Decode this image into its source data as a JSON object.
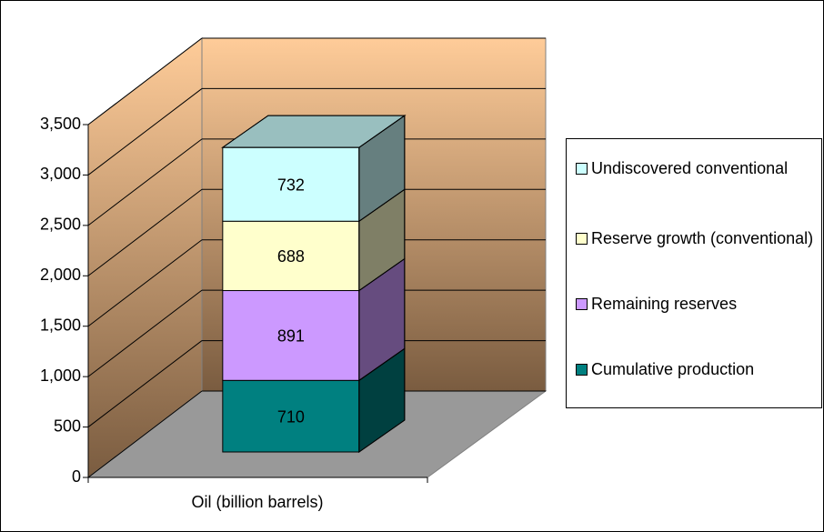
{
  "chart_data": {
    "type": "bar3d_stacked",
    "categories": [
      "Oil (billion barrels)"
    ],
    "series": [
      {
        "name": "Cumulative production",
        "color": "#008080",
        "values": [
          710
        ]
      },
      {
        "name": "Remaining reserves",
        "color": "#CC99FF",
        "values": [
          891
        ]
      },
      {
        "name": "Reserve growth (conventional)",
        "color": "#FFFFCC",
        "values": [
          688
        ]
      },
      {
        "name": "Undiscovered conventional",
        "color": "#CCFFFF",
        "values": [
          732
        ]
      }
    ],
    "ylim": [
      0,
      3500
    ],
    "yticks": [
      0,
      500,
      {
        "value": 1000,
        "label": "1,000"
      },
      {
        "value": 1500,
        "label": "1,500"
      },
      {
        "value": 2000,
        "label": "2,000"
      },
      {
        "value": 2500,
        "label": "2,500"
      },
      {
        "value": 3000,
        "label": "3,000"
      },
      {
        "value": 3500,
        "label": "3,500"
      }
    ],
    "grid": true,
    "legend": "right"
  }
}
